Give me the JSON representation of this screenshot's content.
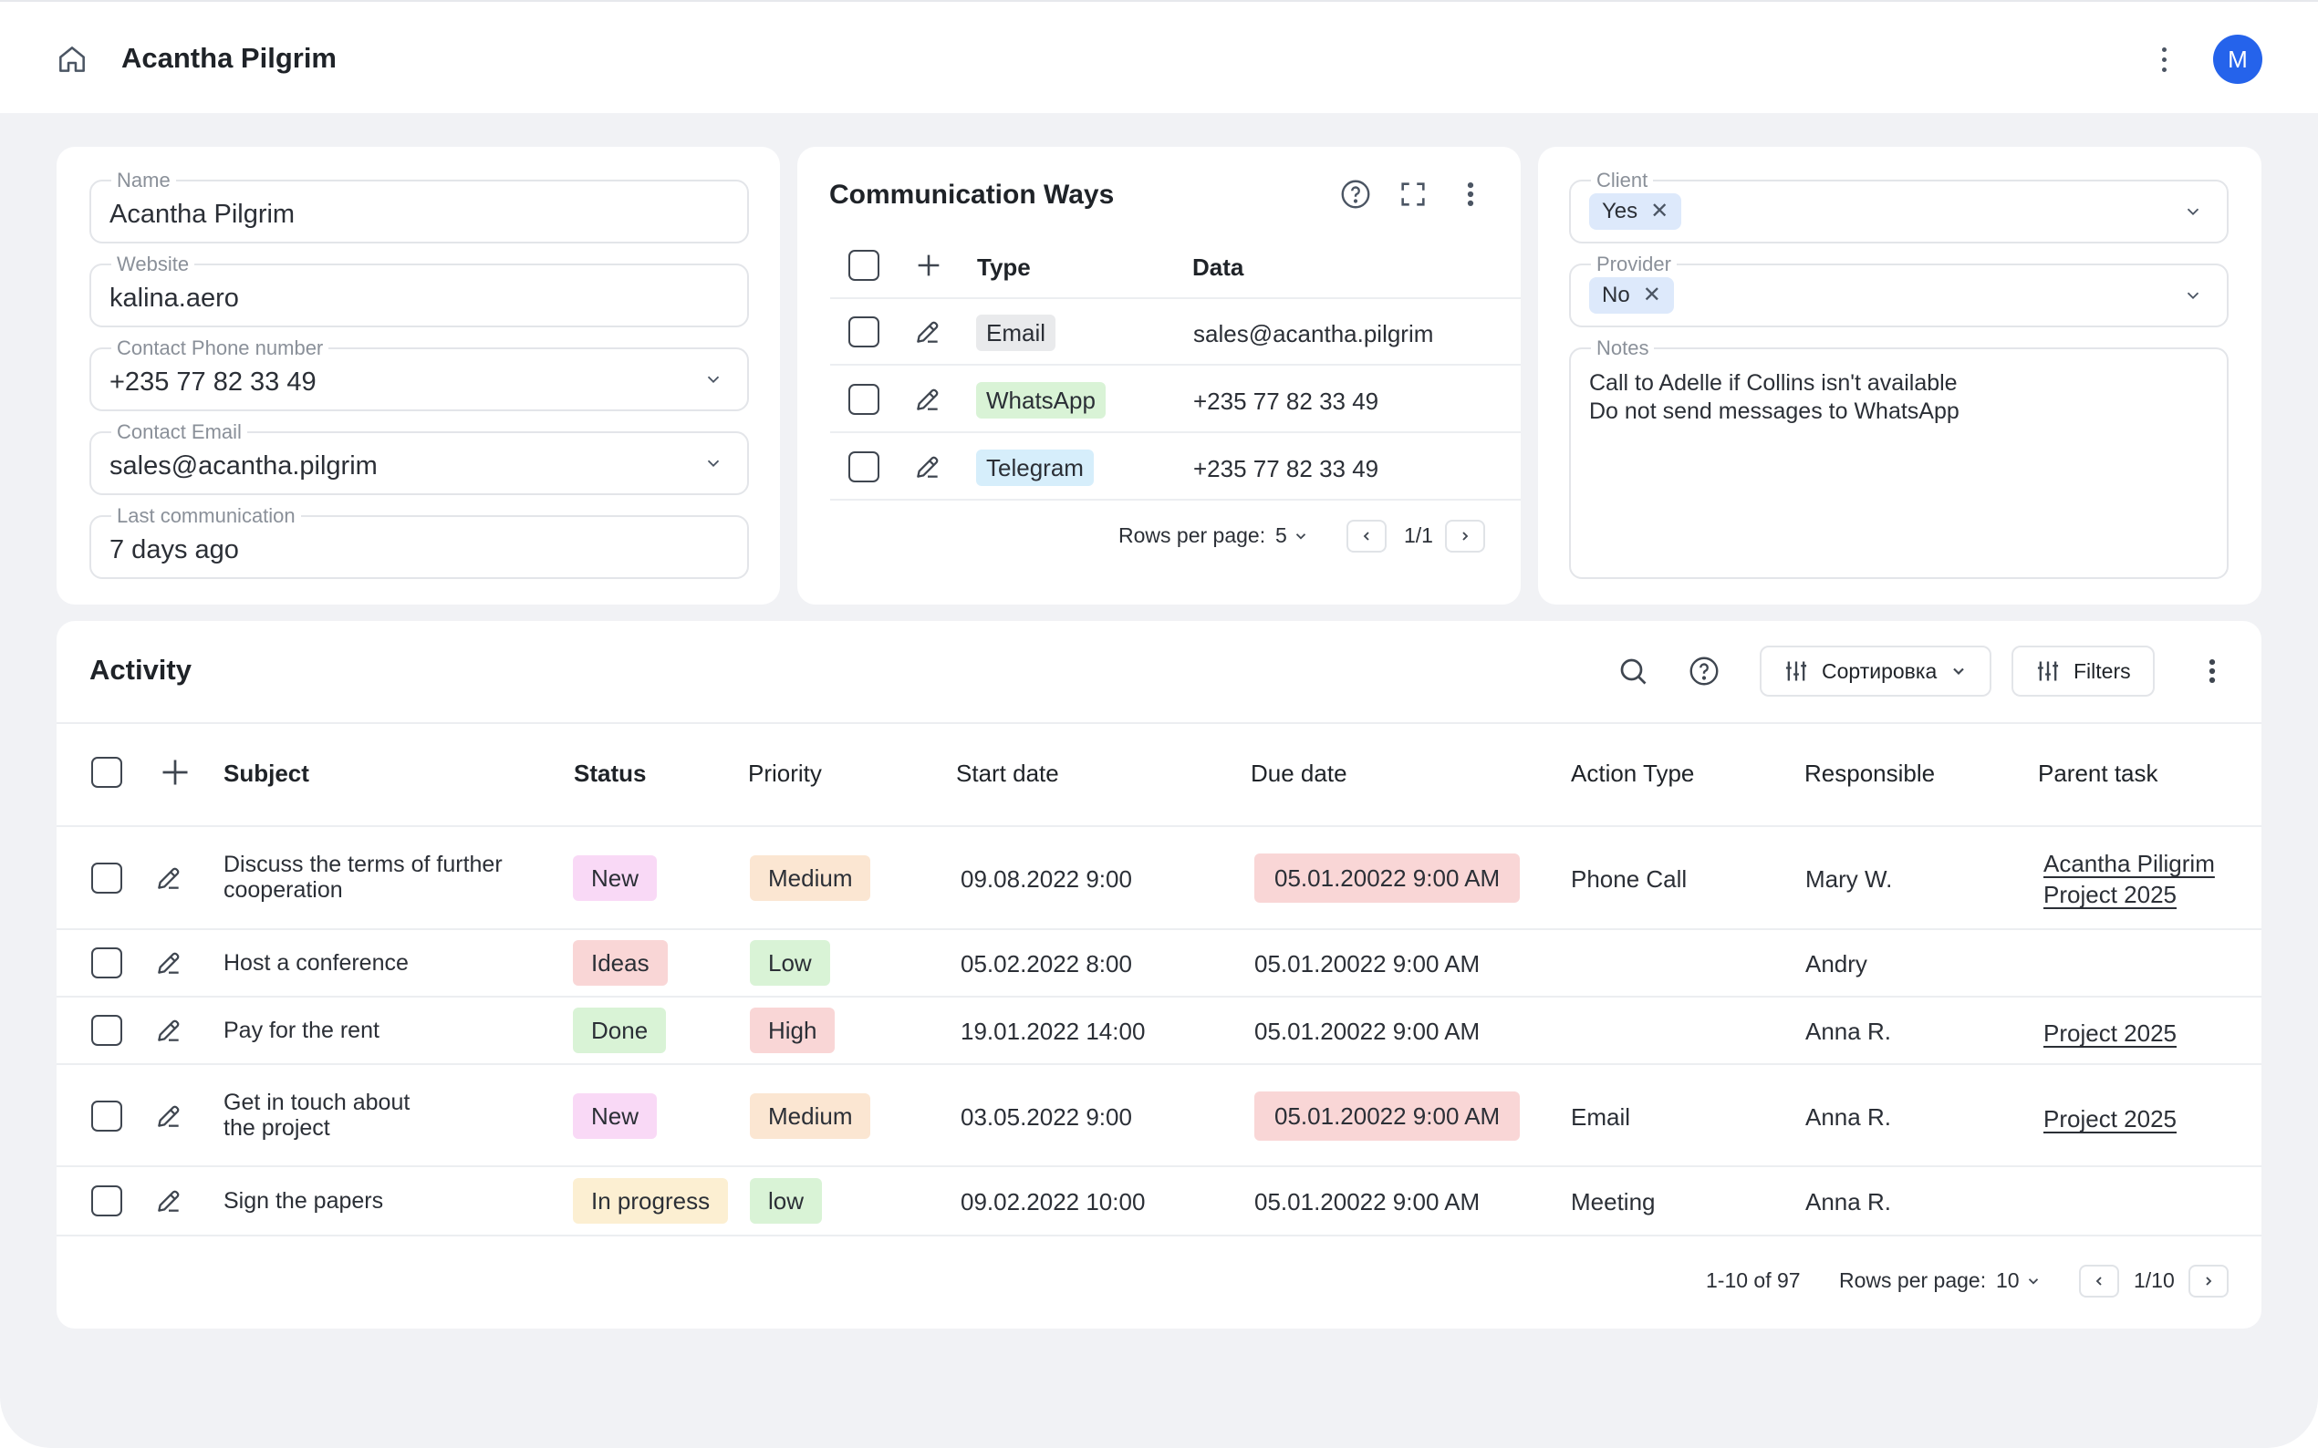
{
  "header": {
    "title": "Acantha Pilgrim",
    "avatar_initial": "M"
  },
  "details": {
    "name": {
      "label": "Name",
      "value": "Acantha Pilgrim"
    },
    "website": {
      "label": "Website",
      "value": "kalina.aero"
    },
    "phone": {
      "label": "Contact Phone number",
      "value": "+235 77 82 33 49"
    },
    "email": {
      "label": "Contact Email",
      "value": "sales@acantha.pilgrim"
    },
    "last_comm": {
      "label": "Last communication",
      "value": "7 days ago"
    }
  },
  "communication": {
    "title": "Communication Ways",
    "columns": {
      "type": "Type",
      "data": "Data"
    },
    "rows": [
      {
        "type": "Email",
        "data": "sales@acantha.pilgrim",
        "color": "#e9eaec"
      },
      {
        "type": "WhatsApp",
        "data": "+235 77 82 33 49",
        "color": "#d9f3d6"
      },
      {
        "type": "Telegram",
        "data": "+235 77 82 33 49",
        "color": "#d6eefb"
      }
    ],
    "rows_per_page_label": "Rows per page:",
    "rows_per_page": "5",
    "page": "1/1"
  },
  "flags": {
    "client": {
      "label": "Client",
      "value": "Yes"
    },
    "provider": {
      "label": "Provider",
      "value": "No"
    },
    "notes": {
      "label": "Notes",
      "value": "Call to Adelle if Collins isn't available\nDo not send messages to WhatsApp"
    }
  },
  "activity": {
    "title": "Activity",
    "sort_label": "Сортировка",
    "filters_label": "Filters",
    "columns": {
      "subject": "Subject",
      "status": "Status",
      "priority": "Priority",
      "start": "Start date",
      "due": "Due date",
      "action": "Action Type",
      "responsible": "Responsible",
      "parent": "Parent task"
    },
    "rows": [
      {
        "subject": "Discuss the terms of further\ncooperation",
        "status": "New",
        "priority": "Medium",
        "start": "09.08.2022 9:00",
        "due": "05.01.20022 9:00 AM",
        "due_overdue": true,
        "action": "Phone Call",
        "responsible": "Mary W.",
        "parent": "Acantha Piligrim\nProject 2025"
      },
      {
        "subject": "Host a conference",
        "status": "Ideas",
        "priority": "Low",
        "start": "05.02.2022 8:00",
        "due": "05.01.20022 9:00 AM",
        "due_overdue": false,
        "action": "",
        "responsible": "Andry",
        "parent": ""
      },
      {
        "subject": "Pay for the rent",
        "status": "Done",
        "priority": "High",
        "start": "19.01.2022 14:00",
        "due": "05.01.20022 9:00 AM",
        "due_overdue": false,
        "action": "",
        "responsible": "Anna R.",
        "parent": "Project 2025"
      },
      {
        "subject": "Get in touch about\nthe project",
        "status": "New",
        "priority": "Medium",
        "start": "03.05.2022 9:00",
        "due": "05.01.20022 9:00 AM",
        "due_overdue": true,
        "action": "Email",
        "responsible": "Anna R.",
        "parent": "Project 2025"
      },
      {
        "subject": "Sign the papers",
        "status": "In progress",
        "priority": "low",
        "start": "09.02.2022 10:00",
        "due": "05.01.20022 9:00 AM",
        "due_overdue": false,
        "action": "Meeting",
        "responsible": "Anna R.",
        "parent": ""
      }
    ],
    "range": "1-10 of 97",
    "rows_per_page_label": "Rows per page:",
    "rows_per_page": "10",
    "page": "1/10"
  },
  "colors": {
    "status": {
      "New": "#f9d9f6",
      "Ideas": "#f9d6d6",
      "Done": "#d9f3d6",
      "In progress": "#fcefd2"
    },
    "priority": {
      "Medium": "#fbe6d2",
      "Low": "#d9f3d6",
      "low": "#d9f3d6",
      "High": "#f9d6d6"
    },
    "overdue": "#f9d6d6",
    "avatar": "#2563eb"
  }
}
